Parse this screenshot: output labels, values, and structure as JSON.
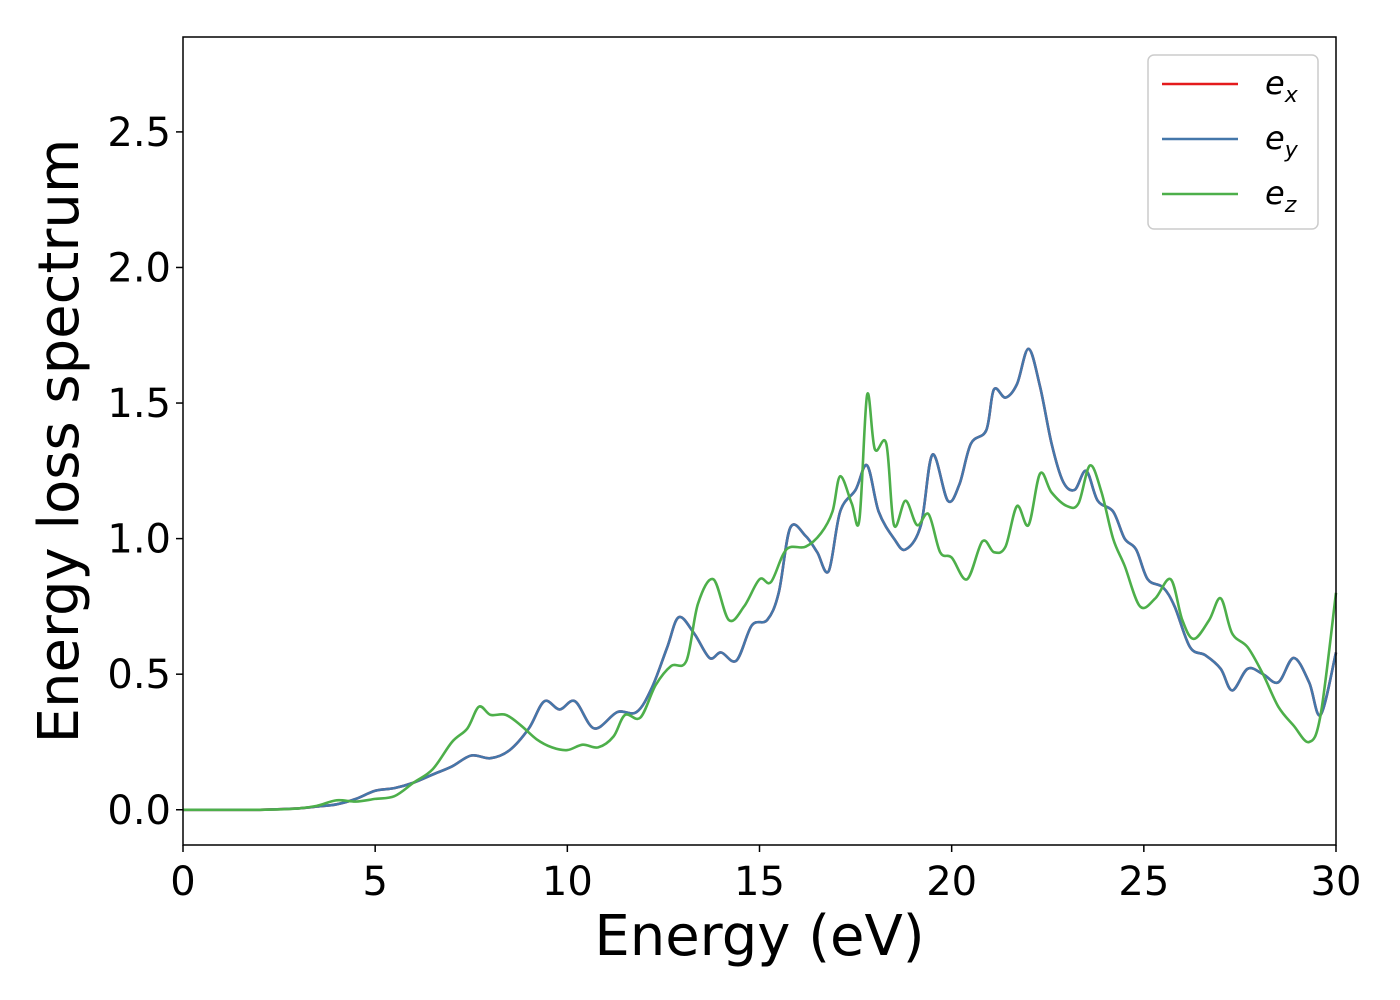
{
  "chart_data": {
    "type": "line",
    "title": "",
    "xlabel": "Energy (eV)",
    "ylabel": "Energy loss spectrum",
    "xlim": [
      0,
      30
    ],
    "ylim": [
      -0.13,
      2.85
    ],
    "xticks": [
      0,
      5,
      10,
      15,
      20,
      25,
      30
    ],
    "xtick_labels": [
      "0",
      "5",
      "10",
      "15",
      "20",
      "25",
      "30"
    ],
    "yticks": [
      0.0,
      0.5,
      1.0,
      1.5,
      2.0,
      2.5
    ],
    "ytick_labels": [
      "0.0",
      "0.5",
      "1.0",
      "1.5",
      "2.0",
      "2.5"
    ],
    "grid": false,
    "legend_position": "top-right",
    "series": [
      {
        "name": "e",
        "subscript": "x",
        "color": "#e41a1c",
        "points": [
          [
            0,
            0.0
          ],
          [
            2,
            0.0
          ],
          [
            3,
            0.005
          ],
          [
            3.5,
            0.012
          ],
          [
            4,
            0.02
          ],
          [
            4.5,
            0.04
          ],
          [
            5,
            0.07
          ],
          [
            5.5,
            0.08
          ],
          [
            6,
            0.1
          ],
          [
            6.5,
            0.13
          ],
          [
            7,
            0.16
          ],
          [
            7.5,
            0.2
          ],
          [
            8,
            0.19
          ],
          [
            8.5,
            0.22
          ],
          [
            9,
            0.3
          ],
          [
            9.4,
            0.4
          ],
          [
            9.8,
            0.37
          ],
          [
            10.2,
            0.4
          ],
          [
            10.7,
            0.3
          ],
          [
            11.3,
            0.36
          ],
          [
            11.8,
            0.36
          ],
          [
            12.2,
            0.45
          ],
          [
            12.6,
            0.6
          ],
          [
            12.9,
            0.71
          ],
          [
            13.3,
            0.65
          ],
          [
            13.7,
            0.56
          ],
          [
            14,
            0.58
          ],
          [
            14.4,
            0.55
          ],
          [
            14.8,
            0.68
          ],
          [
            15.2,
            0.7
          ],
          [
            15.5,
            0.8
          ],
          [
            15.8,
            1.04
          ],
          [
            16.2,
            1.01
          ],
          [
            16.5,
            0.95
          ],
          [
            16.8,
            0.88
          ],
          [
            17.1,
            1.1
          ],
          [
            17.5,
            1.18
          ],
          [
            17.8,
            1.27
          ],
          [
            18.1,
            1.1
          ],
          [
            18.5,
            1.0
          ],
          [
            18.8,
            0.96
          ],
          [
            19.2,
            1.05
          ],
          [
            19.5,
            1.31
          ],
          [
            19.9,
            1.14
          ],
          [
            20.2,
            1.2
          ],
          [
            20.5,
            1.35
          ],
          [
            20.9,
            1.4
          ],
          [
            21.1,
            1.55
          ],
          [
            21.4,
            1.52
          ],
          [
            21.7,
            1.57
          ],
          [
            22,
            1.7
          ],
          [
            22.3,
            1.56
          ],
          [
            22.6,
            1.35
          ],
          [
            22.9,
            1.21
          ],
          [
            23.2,
            1.18
          ],
          [
            23.5,
            1.25
          ],
          [
            23.8,
            1.14
          ],
          [
            24.2,
            1.1
          ],
          [
            24.5,
            1.0
          ],
          [
            24.8,
            0.96
          ],
          [
            25.1,
            0.85
          ],
          [
            25.5,
            0.82
          ],
          [
            25.8,
            0.75
          ],
          [
            26.2,
            0.6
          ],
          [
            26.6,
            0.57
          ],
          [
            27,
            0.52
          ],
          [
            27.3,
            0.44
          ],
          [
            27.7,
            0.52
          ],
          [
            28.1,
            0.5
          ],
          [
            28.5,
            0.47
          ],
          [
            28.9,
            0.56
          ],
          [
            29.3,
            0.47
          ],
          [
            29.6,
            0.35
          ],
          [
            30,
            0.58
          ]
        ]
      },
      {
        "name": "e",
        "subscript": "y",
        "color": "#4477aa",
        "points": [
          [
            0,
            0.0
          ],
          [
            2,
            0.0
          ],
          [
            3,
            0.005
          ],
          [
            3.5,
            0.012
          ],
          [
            4,
            0.02
          ],
          [
            4.5,
            0.04
          ],
          [
            5,
            0.07
          ],
          [
            5.5,
            0.08
          ],
          [
            6,
            0.1
          ],
          [
            6.5,
            0.13
          ],
          [
            7,
            0.16
          ],
          [
            7.5,
            0.2
          ],
          [
            8,
            0.19
          ],
          [
            8.5,
            0.22
          ],
          [
            9,
            0.3
          ],
          [
            9.4,
            0.4
          ],
          [
            9.8,
            0.37
          ],
          [
            10.2,
            0.4
          ],
          [
            10.7,
            0.3
          ],
          [
            11.3,
            0.36
          ],
          [
            11.8,
            0.36
          ],
          [
            12.2,
            0.45
          ],
          [
            12.6,
            0.6
          ],
          [
            12.9,
            0.71
          ],
          [
            13.3,
            0.65
          ],
          [
            13.7,
            0.56
          ],
          [
            14,
            0.58
          ],
          [
            14.4,
            0.55
          ],
          [
            14.8,
            0.68
          ],
          [
            15.2,
            0.7
          ],
          [
            15.5,
            0.8
          ],
          [
            15.8,
            1.04
          ],
          [
            16.2,
            1.01
          ],
          [
            16.5,
            0.95
          ],
          [
            16.8,
            0.88
          ],
          [
            17.1,
            1.1
          ],
          [
            17.5,
            1.18
          ],
          [
            17.8,
            1.27
          ],
          [
            18.1,
            1.1
          ],
          [
            18.5,
            1.0
          ],
          [
            18.8,
            0.96
          ],
          [
            19.2,
            1.05
          ],
          [
            19.5,
            1.31
          ],
          [
            19.9,
            1.14
          ],
          [
            20.2,
            1.2
          ],
          [
            20.5,
            1.35
          ],
          [
            20.9,
            1.4
          ],
          [
            21.1,
            1.55
          ],
          [
            21.4,
            1.52
          ],
          [
            21.7,
            1.57
          ],
          [
            22,
            1.7
          ],
          [
            22.3,
            1.56
          ],
          [
            22.6,
            1.35
          ],
          [
            22.9,
            1.21
          ],
          [
            23.2,
            1.18
          ],
          [
            23.5,
            1.25
          ],
          [
            23.8,
            1.14
          ],
          [
            24.2,
            1.1
          ],
          [
            24.5,
            1.0
          ],
          [
            24.8,
            0.96
          ],
          [
            25.1,
            0.85
          ],
          [
            25.5,
            0.82
          ],
          [
            25.8,
            0.75
          ],
          [
            26.2,
            0.6
          ],
          [
            26.6,
            0.57
          ],
          [
            27,
            0.52
          ],
          [
            27.3,
            0.44
          ],
          [
            27.7,
            0.52
          ],
          [
            28.1,
            0.5
          ],
          [
            28.5,
            0.47
          ],
          [
            28.9,
            0.56
          ],
          [
            29.3,
            0.47
          ],
          [
            29.6,
            0.35
          ],
          [
            30,
            0.58
          ]
        ]
      },
      {
        "name": "e",
        "subscript": "z",
        "color": "#4daf4a",
        "points": [
          [
            0,
            0.0
          ],
          [
            2,
            0.0
          ],
          [
            3,
            0.005
          ],
          [
            3.5,
            0.015
          ],
          [
            4,
            0.035
          ],
          [
            4.5,
            0.03
          ],
          [
            5,
            0.04
          ],
          [
            5.5,
            0.05
          ],
          [
            6,
            0.1
          ],
          [
            6.5,
            0.15
          ],
          [
            7,
            0.25
          ],
          [
            7.4,
            0.3
          ],
          [
            7.7,
            0.38
          ],
          [
            8,
            0.35
          ],
          [
            8.4,
            0.35
          ],
          [
            8.8,
            0.31
          ],
          [
            9.2,
            0.26
          ],
          [
            9.6,
            0.23
          ],
          [
            10,
            0.22
          ],
          [
            10.4,
            0.24
          ],
          [
            10.8,
            0.23
          ],
          [
            11.2,
            0.27
          ],
          [
            11.5,
            0.35
          ],
          [
            11.9,
            0.34
          ],
          [
            12.3,
            0.46
          ],
          [
            12.7,
            0.53
          ],
          [
            13.1,
            0.55
          ],
          [
            13.4,
            0.76
          ],
          [
            13.8,
            0.85
          ],
          [
            14.2,
            0.7
          ],
          [
            14.6,
            0.75
          ],
          [
            15,
            0.85
          ],
          [
            15.3,
            0.84
          ],
          [
            15.7,
            0.96
          ],
          [
            16.2,
            0.97
          ],
          [
            16.6,
            1.02
          ],
          [
            16.9,
            1.1
          ],
          [
            17.1,
            1.23
          ],
          [
            17.4,
            1.13
          ],
          [
            17.6,
            1.07
          ],
          [
            17.8,
            1.53
          ],
          [
            18,
            1.33
          ],
          [
            18.3,
            1.35
          ],
          [
            18.5,
            1.05
          ],
          [
            18.8,
            1.14
          ],
          [
            19.1,
            1.05
          ],
          [
            19.4,
            1.09
          ],
          [
            19.7,
            0.95
          ],
          [
            20,
            0.93
          ],
          [
            20.4,
            0.85
          ],
          [
            20.8,
            0.99
          ],
          [
            21.1,
            0.95
          ],
          [
            21.4,
            0.97
          ],
          [
            21.7,
            1.12
          ],
          [
            22,
            1.05
          ],
          [
            22.3,
            1.24
          ],
          [
            22.6,
            1.17
          ],
          [
            23,
            1.12
          ],
          [
            23.3,
            1.13
          ],
          [
            23.6,
            1.27
          ],
          [
            23.9,
            1.17
          ],
          [
            24.2,
            1.0
          ],
          [
            24.5,
            0.9
          ],
          [
            24.9,
            0.75
          ],
          [
            25.3,
            0.78
          ],
          [
            25.7,
            0.85
          ],
          [
            26,
            0.7
          ],
          [
            26.3,
            0.63
          ],
          [
            26.7,
            0.7
          ],
          [
            27,
            0.78
          ],
          [
            27.3,
            0.65
          ],
          [
            27.7,
            0.6
          ],
          [
            28.1,
            0.5
          ],
          [
            28.5,
            0.38
          ],
          [
            28.9,
            0.31
          ],
          [
            29.3,
            0.25
          ],
          [
            29.6,
            0.35
          ],
          [
            30,
            0.8
          ]
        ]
      }
    ]
  }
}
